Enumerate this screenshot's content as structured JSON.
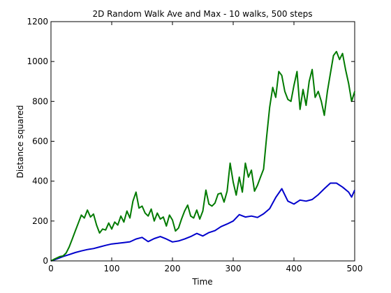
{
  "chart_data": {
    "type": "line",
    "title": "2D Random Walk Ave and Max - 10 walks, 500 steps",
    "xlabel": "Time",
    "ylabel": "Distance squared",
    "xlim": [
      0,
      500
    ],
    "ylim": [
      0,
      1200
    ],
    "xticks": [
      0,
      100,
      200,
      300,
      400,
      500
    ],
    "yticks": [
      0,
      200,
      400,
      600,
      800,
      1000,
      1200
    ],
    "grid": false,
    "legend": "none",
    "series": [
      {
        "color": "#0000cc",
        "x": [
          0,
          10,
          20,
          30,
          40,
          50,
          60,
          70,
          80,
          90,
          100,
          110,
          120,
          130,
          140,
          150,
          160,
          170,
          180,
          190,
          200,
          210,
          220,
          230,
          240,
          250,
          260,
          270,
          280,
          290,
          300,
          310,
          320,
          330,
          340,
          350,
          360,
          370,
          380,
          390,
          400,
          410,
          420,
          430,
          440,
          450,
          460,
          470,
          480,
          490,
          495,
          500
        ],
        "y": [
          0,
          10,
          22,
          32,
          42,
          50,
          57,
          62,
          70,
          78,
          85,
          88,
          92,
          96,
          110,
          118,
          97,
          112,
          122,
          110,
          95,
          100,
          110,
          122,
          138,
          125,
          142,
          152,
          172,
          185,
          200,
          232,
          220,
          225,
          218,
          236,
          262,
          318,
          362,
          300,
          285,
          305,
          300,
          308,
          332,
          362,
          390,
          390,
          370,
          345,
          320,
          355
        ]
      },
      {
        "color": "#007a00",
        "x": [
          0,
          5,
          10,
          15,
          20,
          25,
          30,
          35,
          40,
          45,
          50,
          55,
          60,
          65,
          70,
          75,
          80,
          85,
          90,
          95,
          100,
          105,
          110,
          115,
          120,
          125,
          130,
          135,
          140,
          145,
          150,
          155,
          160,
          165,
          170,
          175,
          180,
          185,
          190,
          195,
          200,
          205,
          210,
          215,
          220,
          225,
          230,
          235,
          240,
          245,
          250,
          255,
          260,
          265,
          270,
          275,
          280,
          285,
          290,
          295,
          300,
          305,
          310,
          315,
          320,
          325,
          330,
          335,
          340,
          345,
          350,
          355,
          360,
          365,
          370,
          375,
          380,
          385,
          390,
          395,
          400,
          405,
          410,
          415,
          420,
          425,
          430,
          435,
          440,
          445,
          450,
          455,
          460,
          465,
          470,
          475,
          480,
          485,
          490,
          495,
          500
        ],
        "y": [
          0,
          8,
          15,
          22,
          25,
          40,
          70,
          110,
          150,
          190,
          230,
          215,
          255,
          220,
          235,
          180,
          140,
          160,
          155,
          190,
          160,
          195,
          180,
          225,
          195,
          250,
          215,
          300,
          345,
          265,
          275,
          240,
          225,
          260,
          200,
          240,
          210,
          220,
          175,
          230,
          205,
          150,
          165,
          210,
          250,
          280,
          225,
          215,
          255,
          210,
          250,
          355,
          285,
          275,
          290,
          335,
          340,
          295,
          350,
          490,
          395,
          330,
          420,
          345,
          490,
          420,
          455,
          350,
          380,
          420,
          460,
          620,
          770,
          870,
          820,
          950,
          930,
          850,
          810,
          800,
          880,
          950,
          760,
          860,
          780,
          900,
          960,
          820,
          850,
          800,
          730,
          850,
          940,
          1030,
          1050,
          1010,
          1040,
          960,
          890,
          800,
          850
        ]
      }
    ]
  }
}
